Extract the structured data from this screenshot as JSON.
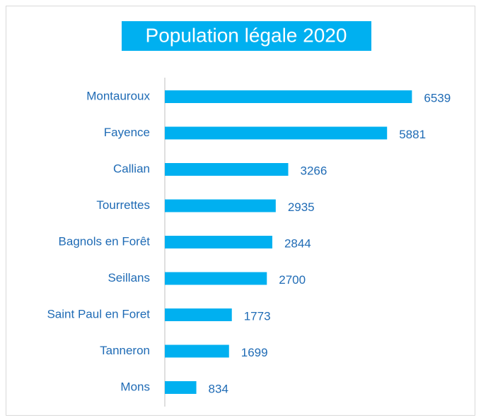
{
  "chart_data": {
    "type": "bar",
    "orientation": "horizontal",
    "title": "Population légale 2020",
    "categories": [
      "Montauroux",
      "Fayence",
      "Callian",
      "Tourrettes",
      "Bagnols en Forêt",
      "Seillans",
      "Saint Paul en Foret",
      "Tanneron",
      "Mons"
    ],
    "values": [
      6539,
      5881,
      3266,
      2935,
      2844,
      2700,
      1773,
      1699,
      834
    ],
    "color": "#00B0F0",
    "xlim": [
      0,
      7000
    ]
  }
}
